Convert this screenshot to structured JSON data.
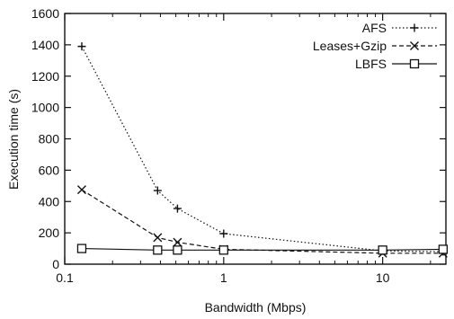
{
  "chart_data": {
    "type": "line",
    "title": "",
    "xlabel": "Bandwidth (Mbps)",
    "ylabel": "Execution time (s)",
    "x_scale": "log",
    "xlim": [
      0.1,
      25
    ],
    "ylim": [
      0,
      1600
    ],
    "x_ticks": [
      0.1,
      1,
      10
    ],
    "x_tick_labels": [
      "0.1",
      "1",
      "10"
    ],
    "y_ticks": [
      0,
      200,
      400,
      600,
      800,
      1000,
      1200,
      1400,
      1600
    ],
    "y_tick_labels": [
      "0",
      "200",
      "400",
      "600",
      "800",
      "1000",
      "1200",
      "1400",
      "1600"
    ],
    "grid": false,
    "legend_position": "top-right",
    "series": [
      {
        "name": "AFS",
        "marker": "plus",
        "dash": "dotted",
        "x": [
          0.128,
          0.384,
          0.512,
          1,
          10,
          24
        ],
        "y": [
          1390,
          470,
          355,
          195,
          85,
          80
        ]
      },
      {
        "name": "Leases+Gzip",
        "marker": "cross",
        "dash": "dashed",
        "x": [
          0.128,
          0.384,
          0.512,
          1,
          10,
          24
        ],
        "y": [
          475,
          170,
          140,
          95,
          70,
          70
        ]
      },
      {
        "name": "LBFS",
        "marker": "square",
        "dash": "solid",
        "x": [
          0.128,
          0.384,
          0.512,
          1,
          10,
          24
        ],
        "y": [
          100,
          90,
          90,
          90,
          90,
          95
        ]
      }
    ]
  }
}
